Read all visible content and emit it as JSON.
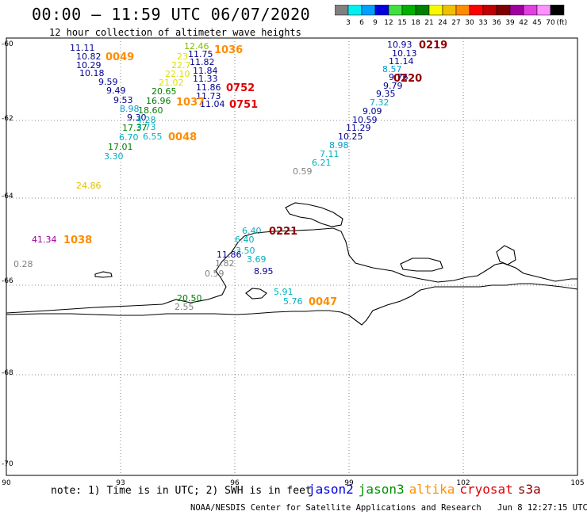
{
  "header": {
    "title": "00:00 – 11:59 UTC 06/07/2020",
    "subtitle": "12 hour collection of altimeter wave heights"
  },
  "colorbar": {
    "labels": [
      "3",
      "6",
      "9",
      "12",
      "15",
      "18",
      "21",
      "24",
      "27",
      "30",
      "33",
      "36",
      "39",
      "42",
      "45",
      "70"
    ],
    "unit": "(ft)",
    "colors": [
      "#808080",
      "#00f0f0",
      "#00a0ff",
      "#0000e0",
      "#40e040",
      "#00b000",
      "#008000",
      "#f8f800",
      "#f0c000",
      "#ff8c00",
      "#ff0000",
      "#c00000",
      "#800000",
      "#a000a0",
      "#e040e0",
      "#ff90ff",
      "#000000"
    ]
  },
  "axes": {
    "lat_labels": [
      "-60",
      "-62",
      "-64",
      "-66",
      "-68",
      "-70"
    ],
    "lon_labels": [
      "90",
      "93",
      "96",
      "99",
      "102",
      "105"
    ]
  },
  "observations": [
    {
      "v": "11.11",
      "c": "#000090"
    },
    {
      "v": "10.82",
      "c": "#000090"
    },
    {
      "v": "10.29",
      "c": "#000090"
    },
    {
      "v": "10.18",
      "c": "#000090"
    },
    {
      "v": "9.59",
      "c": "#000090"
    },
    {
      "v": "9.49",
      "c": "#000090"
    },
    {
      "v": "9.53",
      "c": "#000090"
    },
    {
      "v": "8.98",
      "c": "#00a0d0"
    },
    {
      "v": "9.30",
      "c": "#000090"
    },
    {
      "v": "18.60",
      "c": "#008000"
    },
    {
      "v": "17.37",
      "c": "#008000"
    },
    {
      "v": "4.28",
      "c": "#00b0c0"
    },
    {
      "v": "3.73",
      "c": "#00b0c0"
    },
    {
      "v": "6.70",
      "c": "#00b0c0"
    },
    {
      "v": "6.55",
      "c": "#00b0c0"
    },
    {
      "v": "17.01",
      "c": "#008000"
    },
    {
      "v": "3.30",
      "c": "#00b0c0"
    },
    {
      "v": "24.86",
      "c": "#e0c000"
    },
    {
      "v": "20.65",
      "c": "#008000"
    },
    {
      "v": "16.96",
      "c": "#008000"
    },
    {
      "v": "21.02",
      "c": "#e0e000"
    },
    {
      "v": "22.10",
      "c": "#e0e000"
    },
    {
      "v": "22.7",
      "c": "#e0e000"
    },
    {
      "v": "23",
      "c": "#e0e000"
    },
    {
      "v": "12.46",
      "c": "#80c000"
    },
    {
      "v": "11.75",
      "c": "#000090"
    },
    {
      "v": "11.82",
      "c": "#000090"
    },
    {
      "v": "11.84",
      "c": "#000090"
    },
    {
      "v": "11.33",
      "c": "#000090"
    },
    {
      "v": "11.86",
      "c": "#000090"
    },
    {
      "v": "11.73",
      "c": "#000090"
    },
    {
      "v": "11.04",
      "c": "#000090"
    },
    {
      "v": "10.93",
      "c": "#000090"
    },
    {
      "v": "10.13",
      "c": "#000090"
    },
    {
      "v": "11.14",
      "c": "#000090"
    },
    {
      "v": "8.57",
      "c": "#00a0d0"
    },
    {
      "v": "9.76",
      "c": "#000090"
    },
    {
      "v": "9.79",
      "c": "#000090"
    },
    {
      "v": "9.35",
      "c": "#000090"
    },
    {
      "v": "7.32",
      "c": "#00b0c0"
    },
    {
      "v": "9.09",
      "c": "#000090"
    },
    {
      "v": "10.59",
      "c": "#000090"
    },
    {
      "v": "11.29",
      "c": "#000090"
    },
    {
      "v": "10.25",
      "c": "#000090"
    },
    {
      "v": "8.98",
      "c": "#00a0d0"
    },
    {
      "v": "7.11",
      "c": "#00b0c0"
    },
    {
      "v": "6.21",
      "c": "#00b0c0"
    },
    {
      "v": "0.59",
      "c": "#808080"
    },
    {
      "v": "41.34",
      "c": "#a000a0"
    },
    {
      "v": "0.28",
      "c": "#808080"
    },
    {
      "v": "6.40",
      "c": "#00b0c0"
    },
    {
      "v": "6.40",
      "c": "#00b0c0"
    },
    {
      "v": "11.86",
      "c": "#000090"
    },
    {
      "v": "1.82",
      "c": "#808080"
    },
    {
      "v": "0.59",
      "c": "#808080"
    },
    {
      "v": "3.50",
      "c": "#00b0c0"
    },
    {
      "v": "3.69",
      "c": "#00b0c0"
    },
    {
      "v": "8.95",
      "c": "#000090"
    },
    {
      "v": "20.50",
      "c": "#008000"
    },
    {
      "v": "2.55",
      "c": "#808080"
    },
    {
      "v": "5.91",
      "c": "#00b0c0"
    },
    {
      "v": "5.76",
      "c": "#00b0c0"
    }
  ],
  "time_stamps": [
    {
      "t": "0049",
      "c": "#ff8c00"
    },
    {
      "t": "1036",
      "c": "#ff8c00"
    },
    {
      "t": "0752",
      "c": "#e00000"
    },
    {
      "t": "1037",
      "c": "#ff8c00"
    },
    {
      "t": "0751",
      "c": "#e00000"
    },
    {
      "t": "0048",
      "c": "#ff8c00"
    },
    {
      "t": "0219",
      "c": "#900000"
    },
    {
      "t": "0220",
      "c": "#900000"
    },
    {
      "t": "1038",
      "c": "#ff8c00"
    },
    {
      "t": "0221",
      "c": "#900000"
    },
    {
      "t": "0047",
      "c": "#ff8c00"
    }
  ],
  "footer": {
    "note": "note: 1) Time is in UTC; 2) SWH is in feet",
    "legend": [
      {
        "name": "jason2",
        "color": "#0000e0"
      },
      {
        "name": "jason3",
        "color": "#009000"
      },
      {
        "name": "altika",
        "color": "#ff9000"
      },
      {
        "name": "cryosat",
        "color": "#e00000"
      },
      {
        "name": "s3a",
        "color": "#900000"
      }
    ],
    "credit": "NOAA/NESDIS Center for Satellite Applications and Research",
    "timestamp": "Jun  8 12:27:15 UTC 2020"
  }
}
